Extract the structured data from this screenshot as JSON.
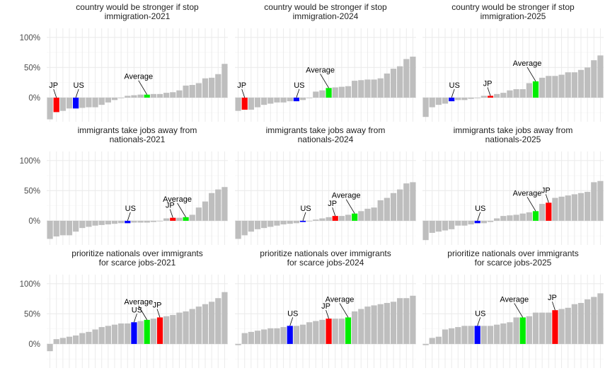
{
  "chart_data": [
    {
      "type": "bar",
      "title": "country would be stronger if stop immigration-2021",
      "title_lines": [
        "country would be stronger if stop",
        "immigration-2021"
      ],
      "ylim": [
        -40,
        115
      ],
      "yticks": [
        0,
        50,
        100
      ],
      "ytick_labels": [
        "0%",
        "50%",
        "100%"
      ],
      "values": [
        -36,
        -24,
        -22,
        -18,
        -18,
        -17,
        -16,
        -16,
        -12,
        -8,
        -4,
        0,
        3,
        4,
        5,
        5,
        6,
        6,
        8,
        9,
        12,
        20,
        21,
        24,
        32,
        33,
        39,
        56
      ],
      "highlights": [
        {
          "label": "JP",
          "index": 1,
          "color": "#ff0000"
        },
        {
          "label": "US",
          "index": 4,
          "color": "#0000ff"
        },
        {
          "label": "Average",
          "index": 15,
          "color": "#00ee00"
        }
      ]
    },
    {
      "type": "bar",
      "title": "country would be stronger if stop immigration-2024",
      "title_lines": [
        "country would be stronger if stop",
        "immigration-2024"
      ],
      "ylim": [
        -40,
        115
      ],
      "yticks": [
        0,
        50,
        100
      ],
      "ytick_labels": [
        "0%",
        "50%",
        "100%"
      ],
      "values": [
        -22,
        -20,
        -20,
        -16,
        -12,
        -10,
        -8,
        -8,
        -6,
        -6,
        -4,
        0,
        10,
        12,
        16,
        17,
        18,
        19,
        28,
        29,
        30,
        30,
        32,
        40,
        48,
        52,
        64,
        68
      ],
      "highlights": [
        {
          "label": "JP",
          "index": 1,
          "color": "#ff0000"
        },
        {
          "label": "US",
          "index": 9,
          "color": "#0000ff"
        },
        {
          "label": "Average",
          "index": 14,
          "color": "#00ee00"
        }
      ]
    },
    {
      "type": "bar",
      "title": "country would be stronger if stop immigration-2025",
      "title_lines": [
        "country would be stronger if stop",
        "immigration-2025"
      ],
      "ylim": [
        -40,
        115
      ],
      "yticks": [
        0,
        50,
        100
      ],
      "ytick_labels": [
        "0%",
        "50%",
        "100%"
      ],
      "values": [
        -32,
        -16,
        -12,
        -10,
        -6,
        -4,
        -4,
        -2,
        0,
        3,
        3,
        6,
        8,
        12,
        14,
        14,
        24,
        27,
        33,
        36,
        36,
        38,
        42,
        42,
        46,
        50,
        62,
        70
      ],
      "highlights": [
        {
          "label": "US",
          "index": 4,
          "color": "#0000ff"
        },
        {
          "label": "JP",
          "index": 10,
          "color": "#ff0000"
        },
        {
          "label": "Average",
          "index": 17,
          "color": "#00ee00"
        }
      ]
    },
    {
      "type": "bar",
      "title": "immigrants take jobs away from nationals-2021",
      "title_lines": [
        "immigrants take jobs away from",
        "nationals-2021"
      ],
      "ylim": [
        -40,
        115
      ],
      "yticks": [
        0,
        50,
        100
      ],
      "ytick_labels": [
        "0%",
        "50%",
        "100%"
      ],
      "values": [
        -30,
        -26,
        -24,
        -24,
        -18,
        -12,
        -10,
        -8,
        -7,
        -6,
        -5,
        -4,
        -4,
        -3,
        -3,
        -3,
        -2,
        0,
        4,
        5,
        5,
        6,
        10,
        22,
        32,
        46,
        52,
        56
      ],
      "highlights": [
        {
          "label": "US",
          "index": 12,
          "color": "#0000ff"
        },
        {
          "label": "JP",
          "index": 19,
          "color": "#ff0000"
        },
        {
          "label": "Average",
          "index": 21,
          "color": "#00ee00"
        }
      ]
    },
    {
      "type": "bar",
      "title": "immigrants take jobs away from nationals-2024",
      "title_lines": [
        "immigrants take jobs away from",
        "nationals-2024"
      ],
      "ylim": [
        -40,
        115
      ],
      "yticks": [
        0,
        50,
        100
      ],
      "ytick_labels": [
        "0%",
        "50%",
        "100%"
      ],
      "values": [
        -30,
        -24,
        -18,
        -14,
        -12,
        -10,
        -8,
        -6,
        -5,
        -4,
        -2,
        0,
        2,
        4,
        6,
        8,
        8,
        10,
        12,
        16,
        20,
        22,
        34,
        38,
        46,
        52,
        62,
        64
      ],
      "highlights": [
        {
          "label": "US",
          "index": 10,
          "color": "#0000ff"
        },
        {
          "label": "JP",
          "index": 15,
          "color": "#ff0000"
        },
        {
          "label": "Average",
          "index": 18,
          "color": "#00ee00"
        }
      ]
    },
    {
      "type": "bar",
      "title": "immigrants take jobs away from nationals-2025",
      "title_lines": [
        "immigrants take jobs away from",
        "nationals-2025"
      ],
      "ylim": [
        -40,
        115
      ],
      "yticks": [
        0,
        50,
        100
      ],
      "ytick_labels": [
        "0%",
        "50%",
        "100%"
      ],
      "values": [
        -32,
        -20,
        -18,
        -16,
        -14,
        -8,
        -8,
        -6,
        -4,
        -4,
        -2,
        4,
        8,
        9,
        10,
        12,
        14,
        16,
        28,
        30,
        38,
        40,
        42,
        44,
        46,
        48,
        64,
        66
      ],
      "highlights": [
        {
          "label": "US",
          "index": 8,
          "color": "#0000ff"
        },
        {
          "label": "Average",
          "index": 17,
          "color": "#00ee00"
        },
        {
          "label": "JP",
          "index": 19,
          "color": "#ff0000"
        }
      ]
    },
    {
      "type": "bar",
      "title": "prioritize nationals over immigrants for scarce jobs-2021",
      "title_lines": [
        "prioritize nationals over immigrants",
        "for scarce jobs-2021"
      ],
      "ylim": [
        -40,
        115
      ],
      "yticks": [
        0,
        50,
        100
      ],
      "ytick_labels": [
        "0%",
        "50%",
        "100%"
      ],
      "values": [
        -12,
        8,
        10,
        12,
        14,
        18,
        20,
        24,
        28,
        30,
        32,
        34,
        34,
        36,
        38,
        40,
        42,
        44,
        46,
        48,
        52,
        54,
        58,
        62,
        66,
        70,
        76,
        86
      ],
      "highlights": [
        {
          "label": "US",
          "index": 13,
          "color": "#0000ff"
        },
        {
          "label": "Average",
          "index": 15,
          "color": "#00ee00"
        },
        {
          "label": "JP",
          "index": 17,
          "color": "#ff0000"
        }
      ]
    },
    {
      "type": "bar",
      "title": "prioritize nationals over immigrants for scarce jobs-2024",
      "title_lines": [
        "prioritize nationals over immigrants",
        "for scarce jobs-2024"
      ],
      "ylim": [
        -40,
        115
      ],
      "yticks": [
        0,
        50,
        100
      ],
      "ytick_labels": [
        "0%",
        "50%",
        "100%"
      ],
      "values": [
        -2,
        18,
        20,
        22,
        24,
        26,
        26,
        28,
        30,
        30,
        32,
        36,
        38,
        40,
        42,
        42,
        42,
        44,
        54,
        58,
        62,
        64,
        66,
        68,
        70,
        76,
        76,
        80
      ],
      "highlights": [
        {
          "label": "US",
          "index": 8,
          "color": "#0000ff"
        },
        {
          "label": "JP",
          "index": 14,
          "color": "#ff0000"
        },
        {
          "label": "Average",
          "index": 17,
          "color": "#00ee00"
        }
      ]
    },
    {
      "type": "bar",
      "title": "prioritize nationals over immigrants for scarce jobs-2025",
      "title_lines": [
        "prioritize nationals over immigrants",
        "for scarce jobs-2025"
      ],
      "ylim": [
        -40,
        115
      ],
      "yticks": [
        0,
        50,
        100
      ],
      "ytick_labels": [
        "0%",
        "50%",
        "100%"
      ],
      "values": [
        -2,
        10,
        12,
        24,
        26,
        28,
        30,
        30,
        30,
        30,
        30,
        32,
        34,
        36,
        44,
        44,
        46,
        52,
        52,
        52,
        56,
        58,
        60,
        66,
        68,
        74,
        78,
        84
      ],
      "highlights": [
        {
          "label": "US",
          "index": 8,
          "color": "#0000ff"
        },
        {
          "label": "Average",
          "index": 15,
          "color": "#00ee00"
        },
        {
          "label": "JP",
          "index": 20,
          "color": "#ff0000"
        }
      ]
    }
  ],
  "colors": {
    "bar": "#bebebe",
    "grid_major": "#ebebeb",
    "grid_minor": "#f5f5f5",
    "text": "#222222",
    "tick_text": "#4d4d4d"
  }
}
